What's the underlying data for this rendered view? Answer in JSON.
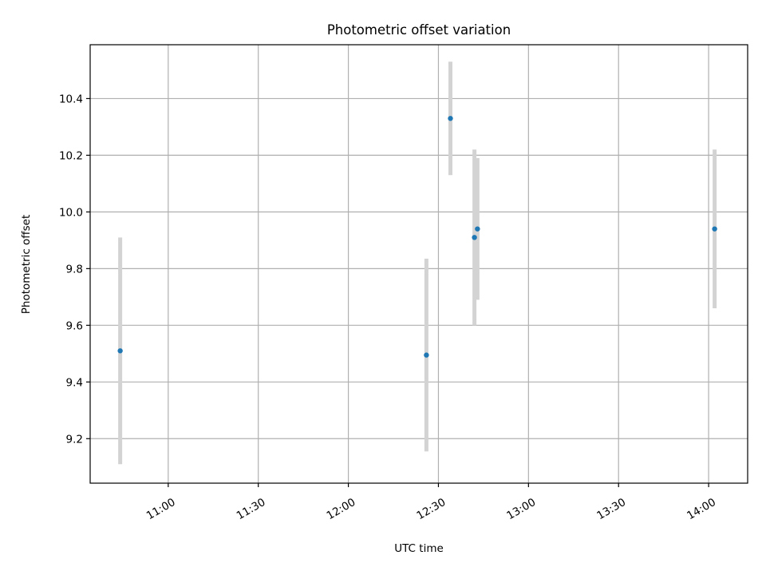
{
  "chart_data": {
    "type": "scatter",
    "title": "Photometric offset variation",
    "xlabel": "UTC time",
    "ylabel": "Photometric offset",
    "x_type": "time",
    "xlim": [
      "10:34",
      "14:13"
    ],
    "ylim": [
      9.043,
      10.59
    ],
    "x_ticks": [
      "11:00",
      "11:30",
      "12:00",
      "12:30",
      "13:00",
      "13:30",
      "14:00"
    ],
    "y_ticks": [
      "9.2",
      "9.4",
      "9.6",
      "9.8",
      "10.0",
      "10.2",
      "10.4"
    ],
    "grid": true,
    "series": [
      {
        "name": "",
        "points": [
          {
            "x": "10:44",
            "y": 9.51,
            "err": 0.4
          },
          {
            "x": "12:26",
            "y": 9.495,
            "err": 0.34
          },
          {
            "x": "12:34",
            "y": 10.33,
            "err": 0.2
          },
          {
            "x": "12:42",
            "y": 9.91,
            "err": 0.31
          },
          {
            "x": "12:43",
            "y": 9.94,
            "err": 0.25
          },
          {
            "x": "14:02",
            "y": 9.94,
            "err": 0.28
          }
        ]
      }
    ],
    "colors": {
      "marker": "#1f77b4",
      "errorbar": "#d3d3d3",
      "grid": "#b0b0b0"
    }
  }
}
